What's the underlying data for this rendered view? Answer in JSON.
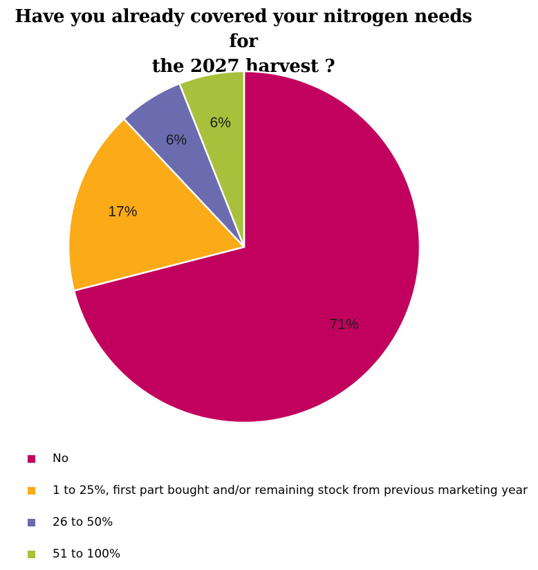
{
  "chart_data": {
    "type": "pie",
    "title": "Have you already covered your nitrogen needs for the 2027 harvest ?",
    "title_lines": [
      "Have you already covered your nitrogen needs for",
      "the 2027 harvest ?"
    ],
    "slices": [
      {
        "label": "No",
        "value": 71,
        "display": "71%",
        "color": "#c2005e"
      },
      {
        "label": "1 to 25%, first part bought and/or remaining stock from previous marketing year",
        "value": 17,
        "display": "17%",
        "color": "#fcab18"
      },
      {
        "label": "26 to 50%",
        "value": 6,
        "display": "6%",
        "color": "#6b6bb0"
      },
      {
        "label": "51 to 100%",
        "value": 6,
        "display": "6%",
        "color": "#a8c03c"
      }
    ],
    "direction": "clockwise",
    "start": "top",
    "legend_position": "bottom-left"
  }
}
